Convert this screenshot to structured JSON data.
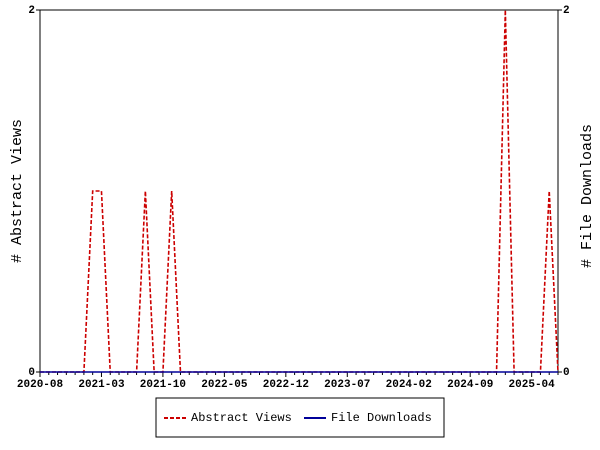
{
  "chart_data": {
    "type": "line",
    "categories": [
      "2020-08",
      null,
      null,
      null,
      null,
      null,
      null,
      "2021-03",
      null,
      null,
      null,
      null,
      null,
      null,
      "2021-10",
      null,
      null,
      null,
      null,
      null,
      null,
      "2022-05",
      null,
      null,
      null,
      null,
      null,
      null,
      "2022-12",
      null,
      null,
      null,
      null,
      null,
      null,
      "2023-07",
      null,
      null,
      null,
      null,
      null,
      null,
      "2024-02",
      null,
      null,
      null,
      null,
      null,
      null,
      "2024-09",
      null,
      null,
      null,
      null,
      null,
      null,
      "2025-04",
      null,
      null,
      null
    ],
    "series": [
      {
        "name": "Abstract Views",
        "color": "#cc0000",
        "axis": "y",
        "values": [
          0,
          0,
          0,
          0,
          0,
          0,
          1,
          1,
          0,
          0,
          0,
          0,
          1,
          0,
          0,
          1,
          0,
          0,
          0,
          0,
          0,
          0,
          0,
          0,
          0,
          0,
          0,
          0,
          0,
          0,
          0,
          0,
          0,
          0,
          0,
          0,
          0,
          0,
          0,
          0,
          0,
          0,
          0,
          0,
          0,
          0,
          0,
          0,
          0,
          0,
          0,
          0,
          0,
          2,
          0,
          0,
          0,
          0,
          1,
          0
        ]
      },
      {
        "name": "File Downloads",
        "color": "#000099",
        "axis": "y2",
        "values": [
          0,
          0,
          0,
          0,
          0,
          0,
          0,
          0,
          0,
          0,
          0,
          0,
          0,
          0,
          0,
          0,
          0,
          0,
          0,
          0,
          0,
          0,
          0,
          0,
          0,
          0,
          0,
          0,
          0,
          0,
          0,
          0,
          0,
          0,
          0,
          0,
          0,
          0,
          0,
          0,
          0,
          0,
          0,
          0,
          0,
          0,
          0,
          0,
          0,
          0,
          0,
          0,
          0,
          0,
          0,
          0,
          0,
          0,
          0,
          0
        ]
      }
    ],
    "ylabel": "# Abstract Views",
    "y2label": "# File Downloads",
    "ylim": [
      0,
      2
    ],
    "yticks": [
      0,
      2
    ],
    "y2lim": [
      0,
      2
    ],
    "y2ticks": [
      0,
      2
    ],
    "legend": "bottom"
  }
}
